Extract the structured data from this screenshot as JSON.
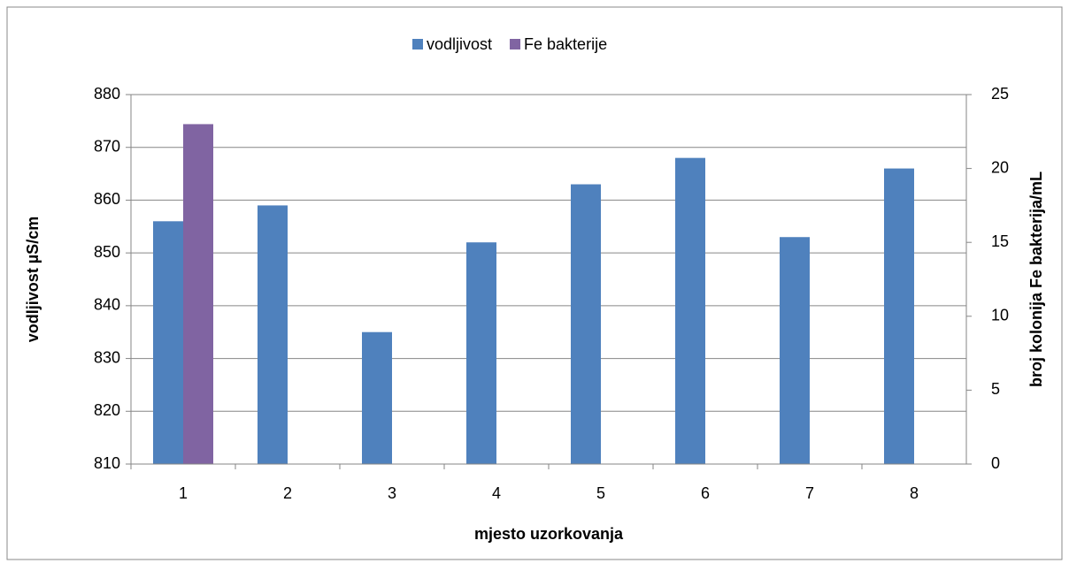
{
  "chart_data": {
    "type": "bar",
    "categories": [
      "1",
      "2",
      "3",
      "4",
      "5",
      "6",
      "7",
      "8"
    ],
    "series": [
      {
        "name": "vodljivost",
        "color": "#4f81bd",
        "values": [
          856,
          859,
          835,
          852,
          863,
          868,
          853,
          866
        ]
      },
      {
        "name": "Fe bakterije",
        "color": "#8064a2",
        "axis": "y2",
        "values": [
          23,
          null,
          null,
          null,
          null,
          null,
          null,
          null
        ]
      }
    ],
    "x_label": "mjesto uzorkovanja",
    "y_label": "vodljivost  µS/cm",
    "y2_label": "broj kolonija Fe bakterija/mL",
    "ylim": [
      810,
      880
    ],
    "yticks": [
      810,
      820,
      830,
      840,
      850,
      860,
      870,
      880
    ],
    "y2lim": [
      0,
      25
    ],
    "y2ticks": [
      0,
      5,
      10,
      15,
      20,
      25
    ],
    "grid": true,
    "legend": "top"
  }
}
